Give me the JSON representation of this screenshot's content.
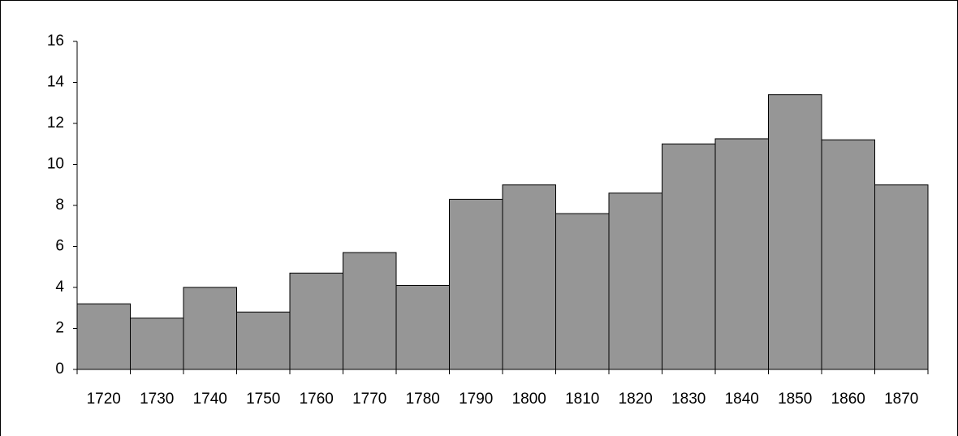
{
  "chart_data": {
    "type": "bar",
    "categories": [
      "1720",
      "1730",
      "1740",
      "1750",
      "1760",
      "1770",
      "1780",
      "1790",
      "1800",
      "1810",
      "1820",
      "1830",
      "1840",
      "1850",
      "1860",
      "1870"
    ],
    "values": [
      3.2,
      2.5,
      4.0,
      2.8,
      4.7,
      5.7,
      4.1,
      8.3,
      9.0,
      7.6,
      8.6,
      11.0,
      11.25,
      13.4,
      11.2,
      9.0
    ],
    "color": "#969696",
    "ylim": [
      0,
      16
    ],
    "yticks": [
      0,
      2,
      4,
      6,
      8,
      10,
      12,
      14,
      16
    ],
    "grid": false
  }
}
